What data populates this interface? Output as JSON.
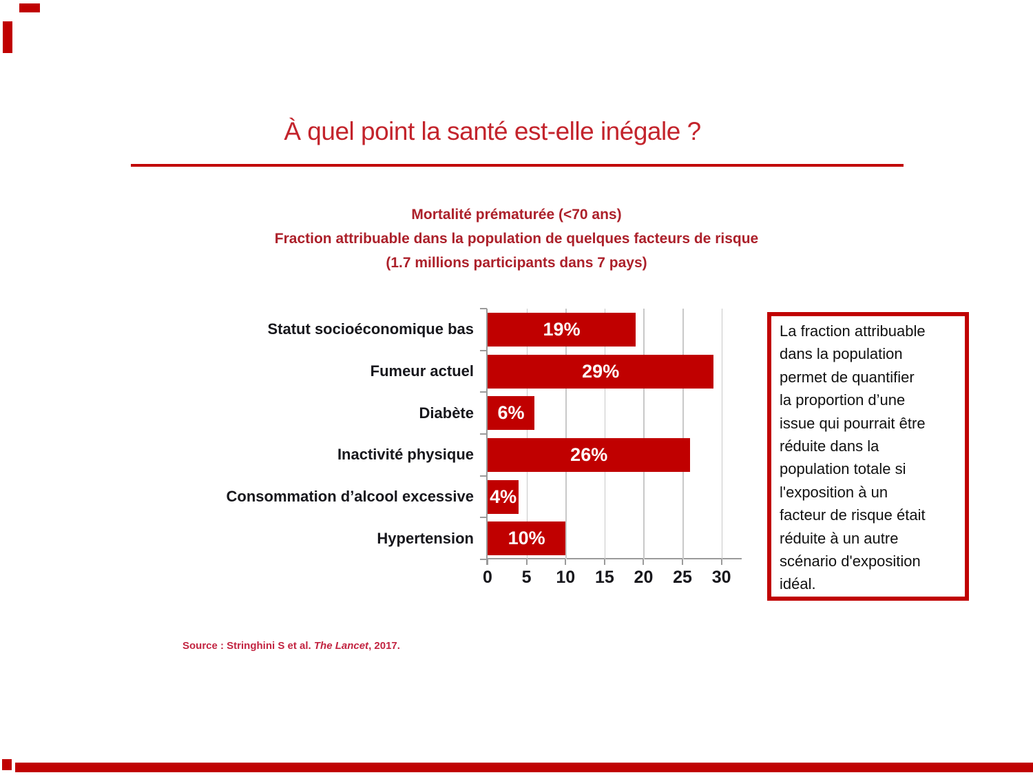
{
  "slide": {
    "title": "À quel point la santé est-elle inégale ?",
    "source": {
      "prefix": "Source : Stringhini S et al. ",
      "italic": "The Lancet",
      "suffix": ", 2017."
    }
  },
  "chart_data": {
    "type": "bar",
    "orientation": "horizontal",
    "title_lines": [
      "Mortalité prématurée (<70 ans)",
      "Fraction attribuable dans la population de quelques facteurs de risque",
      "(1.7 millions participants dans 7 pays)"
    ],
    "categories": [
      "Statut socioéconomique bas",
      "Fumeur actuel",
      "Diabète",
      "Inactivité physique",
      "Consommation d’alcool excessive",
      "Hypertension"
    ],
    "values": [
      19,
      29,
      6,
      26,
      4,
      10
    ],
    "bar_labels": [
      "19%",
      "29%",
      "6%",
      "26%",
      "4%",
      "10%"
    ],
    "xlabel": "",
    "ylabel": "",
    "xlim": [
      0,
      32.5
    ],
    "xticks": [
      0,
      5,
      10,
      15,
      20,
      25,
      30
    ],
    "grid": true,
    "legend": "none",
    "bar_color": "#C00000",
    "bar_label_color": "#FFFFFF"
  },
  "note_box": {
    "text": "La fraction attribuable\ndans la population\npermet de quantifier\nla proportion d’une\nissue qui pourrait être\nréduite dans la\npopulation totale si\nl'exposition à un\nfacteur de risque était\nréduite à un autre\nscénario d'exposition\nidéal."
  },
  "colors": {
    "accent_red": "#C00000",
    "title_red": "#C3242C",
    "heading_red": "#AC202A",
    "source_red": "#C22441",
    "gridline_gray": "#C8C8C8",
    "axis_gray": "#9A9A9A"
  }
}
